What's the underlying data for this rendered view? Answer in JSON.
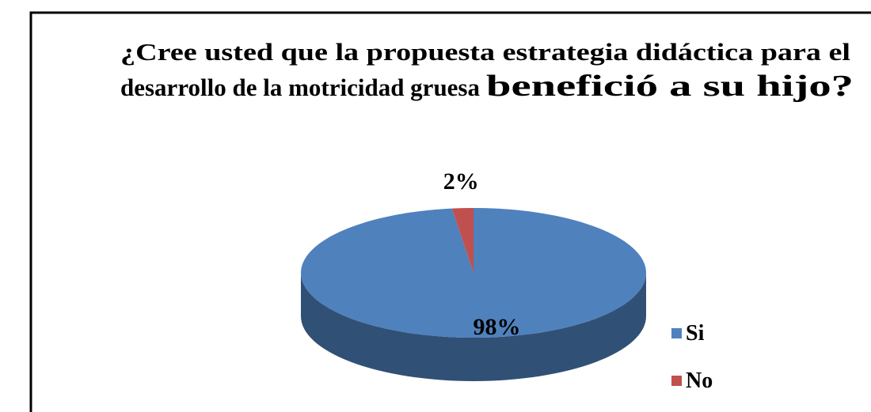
{
  "chart_data": {
    "type": "pie",
    "title": [
      "¿Cree usted que la propuesta estrategia didáctica para el",
      "desarrollo de la motricidad gruesa",
      "benefició a su hijo?"
    ],
    "categories": [
      "Si",
      "No"
    ],
    "values": [
      98,
      2
    ],
    "value_labels": [
      "98%",
      "2%"
    ],
    "colors": [
      "#4f81bd",
      "#c0504d"
    ],
    "legend": "right"
  }
}
